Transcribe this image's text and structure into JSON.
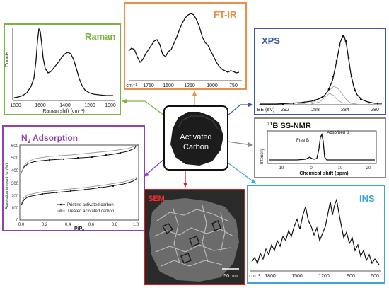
{
  "colors": {
    "raman": "#7cb342",
    "ftir": "#e8904a",
    "xps": "#3a5aa0",
    "nmr": "#8a8a8a",
    "adsorption": "#8e44ad",
    "sem": "#d62020",
    "ins": "#3aa7d8",
    "center": "#222222"
  },
  "center": {
    "line1": "Activated",
    "line2": "Carbon"
  },
  "raman": {
    "title": "Raman",
    "ylabel": "Counts",
    "xlabel": "Raman shift (cm⁻¹)",
    "ticks": [
      "1800",
      "1600",
      "1400",
      "1200",
      "1000"
    ]
  },
  "ftir": {
    "title": "FT-IR",
    "unit": "cm⁻¹",
    "ticks": [
      "1750",
      "1500",
      "1250",
      "1000",
      "750"
    ]
  },
  "xps": {
    "title": "XPS",
    "unit": "BE (eV)",
    "ticks": [
      "292",
      "288",
      "284",
      "280"
    ]
  },
  "nmr": {
    "title_pre": "11",
    "title": "B SS-NMR",
    "ylabel": "Intensity",
    "xlabel": "Chemical shift (ppm)",
    "peak_free": "Free B",
    "peak_adsorbed": "Adsorbed B",
    "ticks": [
      "10",
      "0",
      "-10",
      "-20"
    ]
  },
  "adsorption": {
    "title_pre": "N",
    "title_sub": "2",
    "title_post": " Adsorption",
    "ylabel": "Adsorption amount (cm³/g)",
    "xlabel_pre": "P/P",
    "xlabel_sub": "0",
    "yticks": [
      "600",
      "500",
      "400",
      "300",
      "200",
      "100",
      "0"
    ],
    "xticks": [
      "0.0",
      "0.2",
      "0.4",
      "0.6",
      "0.8",
      "1.0"
    ],
    "legend": [
      "Pristine activated carbon",
      "Treated activated carbon"
    ]
  },
  "sem": {
    "title": "SEM",
    "scale": "50 μm"
  },
  "ins": {
    "title": "INS",
    "unit": "cm⁻¹",
    "ticks": [
      "1800",
      "1500",
      "1200",
      "900",
      "600"
    ]
  }
}
